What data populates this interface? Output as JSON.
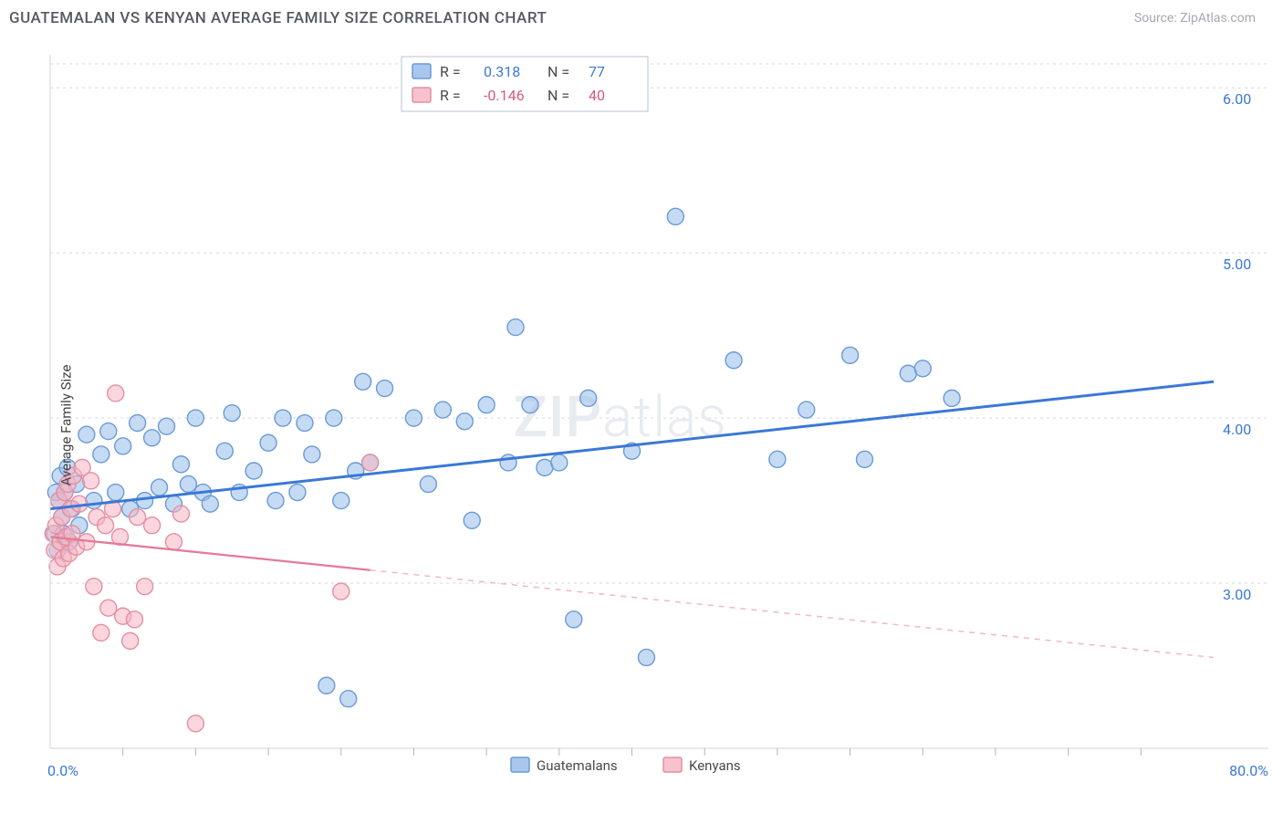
{
  "header": {
    "title": "GUATEMALAN VS KENYAN AVERAGE FAMILY SIZE CORRELATION CHART",
    "source": "Source: ZipAtlas.com"
  },
  "ylabel": "Average Family Size",
  "watermark": {
    "bold": "ZIP",
    "light": "atlas"
  },
  "chart": {
    "type": "scatter",
    "xlim": [
      0,
      80
    ],
    "ylim": [
      2.0,
      6.2
    ],
    "x_start_label": "0.0%",
    "x_end_label": "80.0%",
    "y_gridlines": [
      3.0,
      4.0,
      5.0,
      6.0
    ],
    "y_tick_labels": [
      "3.00",
      "4.00",
      "5.00",
      "6.00"
    ],
    "x_ticks_minor": [
      5,
      10,
      15,
      20,
      25,
      30,
      35,
      40,
      45,
      50,
      55,
      60,
      65,
      70,
      75
    ],
    "background_color": "#ffffff",
    "grid_color": "#d2d7df",
    "marker_radius": 9,
    "series": [
      {
        "name": "Guatemalans",
        "color_fill": "#a9c7ed",
        "color_stroke": "#6b9ad6",
        "R": "0.318",
        "N": "77",
        "trend": {
          "x1": 0,
          "y1": 3.45,
          "x2": 80,
          "y2": 4.22,
          "solid_until_x": 80
        },
        "points": [
          [
            0.3,
            3.3
          ],
          [
            0.4,
            3.55
          ],
          [
            0.5,
            3.2
          ],
          [
            0.6,
            3.5
          ],
          [
            0.7,
            3.65
          ],
          [
            0.8,
            3.4
          ],
          [
            0.9,
            3.3
          ],
          [
            1.0,
            3.55
          ],
          [
            1.2,
            3.7
          ],
          [
            1.3,
            3.25
          ],
          [
            1.5,
            3.45
          ],
          [
            1.8,
            3.6
          ],
          [
            2.0,
            3.35
          ],
          [
            2.5,
            3.9
          ],
          [
            3.0,
            3.5
          ],
          [
            3.5,
            3.78
          ],
          [
            4.0,
            3.92
          ],
          [
            4.5,
            3.55
          ],
          [
            5.0,
            3.83
          ],
          [
            5.5,
            3.45
          ],
          [
            6.0,
            3.97
          ],
          [
            6.5,
            3.5
          ],
          [
            7.0,
            3.88
          ],
          [
            7.5,
            3.58
          ],
          [
            8.0,
            3.95
          ],
          [
            8.5,
            3.48
          ],
          [
            9.0,
            3.72
          ],
          [
            9.5,
            3.6
          ],
          [
            10.0,
            4.0
          ],
          [
            10.5,
            3.55
          ],
          [
            11.0,
            3.48
          ],
          [
            12.0,
            3.8
          ],
          [
            12.5,
            4.03
          ],
          [
            13.0,
            3.55
          ],
          [
            14.0,
            3.68
          ],
          [
            15.0,
            3.85
          ],
          [
            15.5,
            3.5
          ],
          [
            16.0,
            4.0
          ],
          [
            17.0,
            3.55
          ],
          [
            17.5,
            3.97
          ],
          [
            18.0,
            3.78
          ],
          [
            19.0,
            2.38
          ],
          [
            19.5,
            4.0
          ],
          [
            20.0,
            3.5
          ],
          [
            20.5,
            2.3
          ],
          [
            21.0,
            3.68
          ],
          [
            21.5,
            4.22
          ],
          [
            22.0,
            3.73
          ],
          [
            23.0,
            4.18
          ],
          [
            25.0,
            4.0
          ],
          [
            26.0,
            3.6
          ],
          [
            27.0,
            4.05
          ],
          [
            28.5,
            3.98
          ],
          [
            29.0,
            3.38
          ],
          [
            30.0,
            4.08
          ],
          [
            31.5,
            3.73
          ],
          [
            32.0,
            4.55
          ],
          [
            33.0,
            4.08
          ],
          [
            34.0,
            3.7
          ],
          [
            35.0,
            3.73
          ],
          [
            36.0,
            2.78
          ],
          [
            37.0,
            4.12
          ],
          [
            40.0,
            3.8
          ],
          [
            41.0,
            2.55
          ],
          [
            43.0,
            5.22
          ],
          [
            47.0,
            4.35
          ],
          [
            50.0,
            3.75
          ],
          [
            52.0,
            4.05
          ],
          [
            55.0,
            4.38
          ],
          [
            56.0,
            3.75
          ],
          [
            59.0,
            4.27
          ],
          [
            60.0,
            4.3
          ],
          [
            62.0,
            4.12
          ]
        ]
      },
      {
        "name": "Kenyans",
        "color_fill": "#f6c2cd",
        "color_stroke": "#e38fa2",
        "R": "-0.146",
        "N": "40",
        "trend": {
          "x1": 0,
          "y1": 3.28,
          "x2": 80,
          "y2": 2.55,
          "solid_until_x": 22
        },
        "points": [
          [
            0.2,
            3.3
          ],
          [
            0.3,
            3.2
          ],
          [
            0.4,
            3.35
          ],
          [
            0.5,
            3.1
          ],
          [
            0.6,
            3.5
          ],
          [
            0.7,
            3.25
          ],
          [
            0.8,
            3.4
          ],
          [
            0.9,
            3.15
          ],
          [
            1.0,
            3.55
          ],
          [
            1.1,
            3.28
          ],
          [
            1.2,
            3.6
          ],
          [
            1.3,
            3.18
          ],
          [
            1.4,
            3.45
          ],
          [
            1.5,
            3.3
          ],
          [
            1.6,
            3.65
          ],
          [
            1.8,
            3.22
          ],
          [
            2.0,
            3.48
          ],
          [
            2.2,
            3.7
          ],
          [
            2.5,
            3.25
          ],
          [
            2.8,
            3.62
          ],
          [
            3.0,
            2.98
          ],
          [
            3.2,
            3.4
          ],
          [
            3.5,
            2.7
          ],
          [
            3.8,
            3.35
          ],
          [
            4.0,
            2.85
          ],
          [
            4.3,
            3.45
          ],
          [
            4.5,
            4.15
          ],
          [
            4.8,
            3.28
          ],
          [
            5.0,
            2.8
          ],
          [
            5.5,
            2.65
          ],
          [
            5.8,
            2.78
          ],
          [
            6.0,
            3.4
          ],
          [
            6.5,
            2.98
          ],
          [
            7.0,
            3.35
          ],
          [
            8.5,
            3.25
          ],
          [
            9.0,
            3.42
          ],
          [
            10.0,
            2.15
          ],
          [
            20.0,
            2.95
          ],
          [
            22.0,
            3.73
          ]
        ]
      }
    ]
  },
  "bottom_legend": [
    {
      "label": "Guatemalans",
      "swatch": "blue"
    },
    {
      "label": "Kenyans",
      "swatch": "pink"
    }
  ]
}
